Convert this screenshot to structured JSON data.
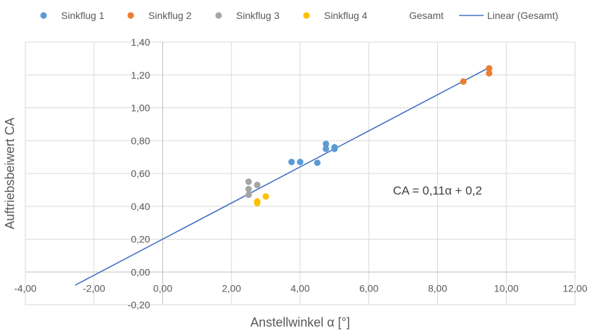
{
  "chart_data": {
    "type": "scatter",
    "xlabel": "Anstellwinkel α [°]",
    "ylabel": "Auftriebsbeiwert CA",
    "xlim": [
      -4,
      12
    ],
    "ylim": [
      -0.2,
      1.4
    ],
    "x_ticks": [
      "-4,00",
      "-2,00",
      "0,00",
      "2,00",
      "4,00",
      "6,00",
      "8,00",
      "10,00",
      "12,00"
    ],
    "y_ticks": [
      "-0,20",
      "0,00",
      "0,20",
      "0,40",
      "0,60",
      "0,80",
      "1,00",
      "1,20",
      "1,40"
    ],
    "grid": true,
    "legend_position": "top",
    "series": [
      {
        "name": "Sinkflug 1",
        "color": "#5B9BD5",
        "points": [
          [
            3.75,
            0.67
          ],
          [
            4.0,
            0.67
          ],
          [
            4.5,
            0.665
          ],
          [
            4.75,
            0.75
          ],
          [
            4.75,
            0.78
          ],
          [
            5.0,
            0.75
          ],
          [
            5.0,
            0.76
          ]
        ]
      },
      {
        "name": "Sinkflug 2",
        "color": "#ED7D31",
        "points": [
          [
            8.75,
            1.16
          ],
          [
            9.5,
            1.21
          ],
          [
            9.5,
            1.24
          ]
        ]
      },
      {
        "name": "Sinkflug 3",
        "color": "#A5A5A5",
        "points": [
          [
            2.5,
            0.47
          ],
          [
            2.5,
            0.505
          ],
          [
            2.5,
            0.55
          ],
          [
            2.75,
            0.53
          ]
        ]
      },
      {
        "name": "Sinkflug 4",
        "color": "#FFC000",
        "points": [
          [
            2.75,
            0.42
          ],
          [
            2.75,
            0.43
          ],
          [
            3.0,
            0.46
          ]
        ]
      }
    ],
    "extra_legend": [
      "Gesamt"
    ],
    "trendline": {
      "name": "Linear (Gesamt)",
      "color": "#4472C4",
      "slope": 0.11,
      "intercept": 0.2,
      "x_range": [
        -2.55,
        9.5
      ],
      "equation": "CA = 0,11α + 0,2"
    }
  }
}
